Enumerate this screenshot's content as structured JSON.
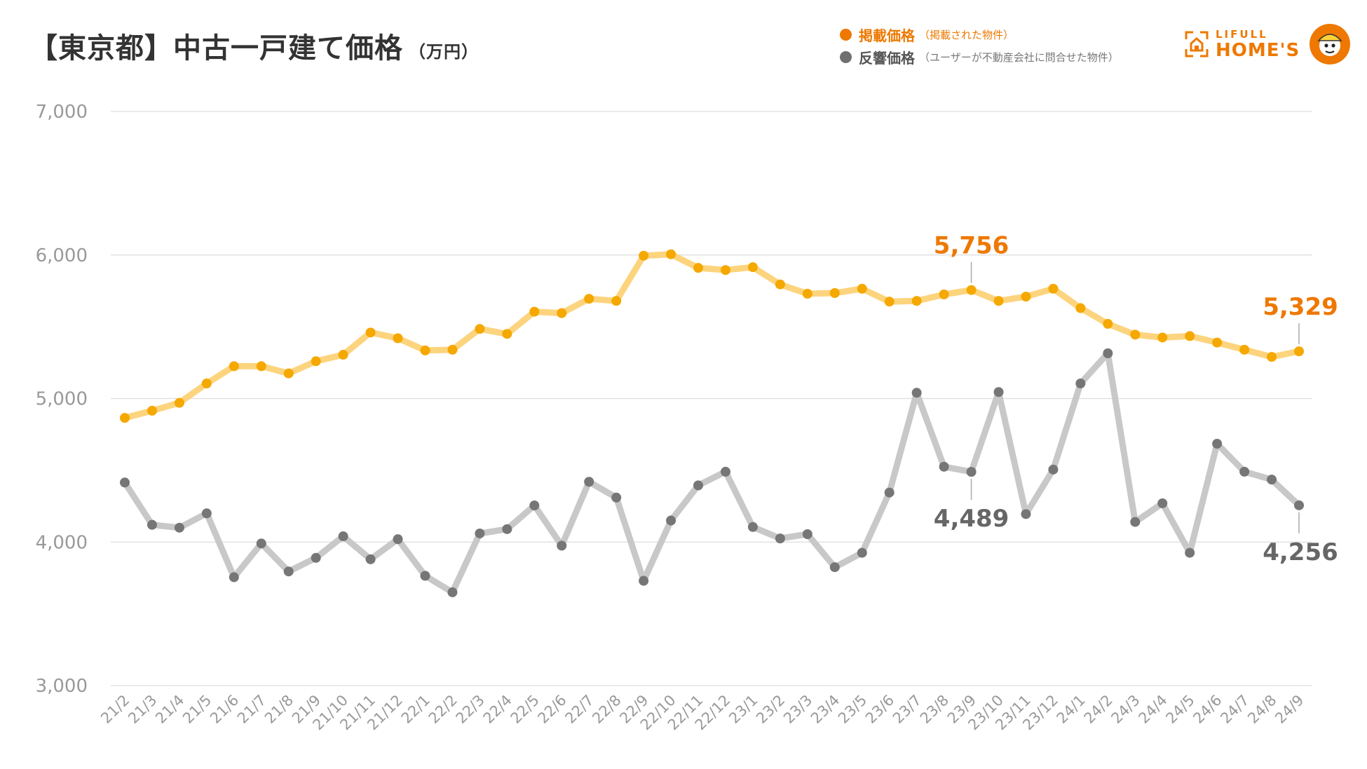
{
  "title": {
    "main": "【東京都】中古一戸建て価格",
    "unit": "（万円）"
  },
  "legend": [
    {
      "name": "掲載価格",
      "note": "（掲載された物件）",
      "color": "#ee7800"
    },
    {
      "name": "反響価格",
      "note": "（ユーザーが不動産会社に問合せた物件）",
      "color": "#707070"
    }
  ],
  "logo": {
    "line1": "LIFULL",
    "line2": "HOME'S"
  },
  "colors": {
    "listed_line": "#fdd47e",
    "listed_dot": "#f5a800",
    "listed_label": "#ee7800",
    "inquiry_line": "#c8c8c8",
    "inquiry_dot": "#767676",
    "inquiry_label": "#666666",
    "grid": "#dddddd",
    "tick": "#999999"
  },
  "chart_data": {
    "type": "line",
    "x": [
      "21/2",
      "21/3",
      "21/4",
      "21/5",
      "21/6",
      "21/7",
      "21/8",
      "21/9",
      "21/10",
      "21/11",
      "21/12",
      "22/1",
      "22/2",
      "22/3",
      "22/4",
      "22/5",
      "22/6",
      "22/7",
      "22/8",
      "22/9",
      "22/10",
      "22/11",
      "22/12",
      "23/1",
      "23/2",
      "23/3",
      "23/4",
      "23/5",
      "23/6",
      "23/7",
      "23/8",
      "23/9",
      "23/10",
      "23/11",
      "23/12",
      "24/1",
      "24/2",
      "24/3",
      "24/4",
      "24/5",
      "24/6",
      "24/7",
      "24/8",
      "24/9"
    ],
    "yticks": [
      "7,000",
      "6,000",
      "5,000",
      "4,000",
      "3,000"
    ],
    "ylim": [
      3000,
      7000
    ],
    "grid": true,
    "series": [
      {
        "name": "掲載価格",
        "values": [
          4865,
          4915,
          4970,
          5105,
          5225,
          5225,
          5175,
          5260,
          5305,
          5460,
          5420,
          5335,
          5340,
          5485,
          5450,
          5605,
          5595,
          5695,
          5680,
          5995,
          6005,
          5910,
          5895,
          5915,
          5795,
          5730,
          5735,
          5765,
          5675,
          5680,
          5725,
          5756,
          5680,
          5710,
          5765,
          5630,
          5520,
          5445,
          5425,
          5435,
          5390,
          5340,
          5290,
          5329
        ]
      },
      {
        "name": "反響価格",
        "values": [
          4415,
          4120,
          4100,
          4200,
          3755,
          3990,
          3795,
          3890,
          4040,
          3880,
          4020,
          3765,
          3650,
          4060,
          4090,
          4255,
          3975,
          4420,
          4310,
          3730,
          4150,
          4395,
          4490,
          4105,
          4025,
          4055,
          3825,
          3925,
          4345,
          5040,
          4525,
          4489,
          5045,
          4195,
          4505,
          5105,
          5315,
          4140,
          4270,
          3925,
          4685,
          4490,
          4435,
          4256
        ]
      }
    ],
    "annotations": [
      {
        "series": 0,
        "index": 31,
        "text": "5,756",
        "position": "above"
      },
      {
        "series": 0,
        "index": 43,
        "text": "5,329",
        "position": "above"
      },
      {
        "series": 1,
        "index": 31,
        "text": "4,489",
        "position": "below"
      },
      {
        "series": 1,
        "index": 43,
        "text": "4,256",
        "position": "below"
      }
    ]
  }
}
